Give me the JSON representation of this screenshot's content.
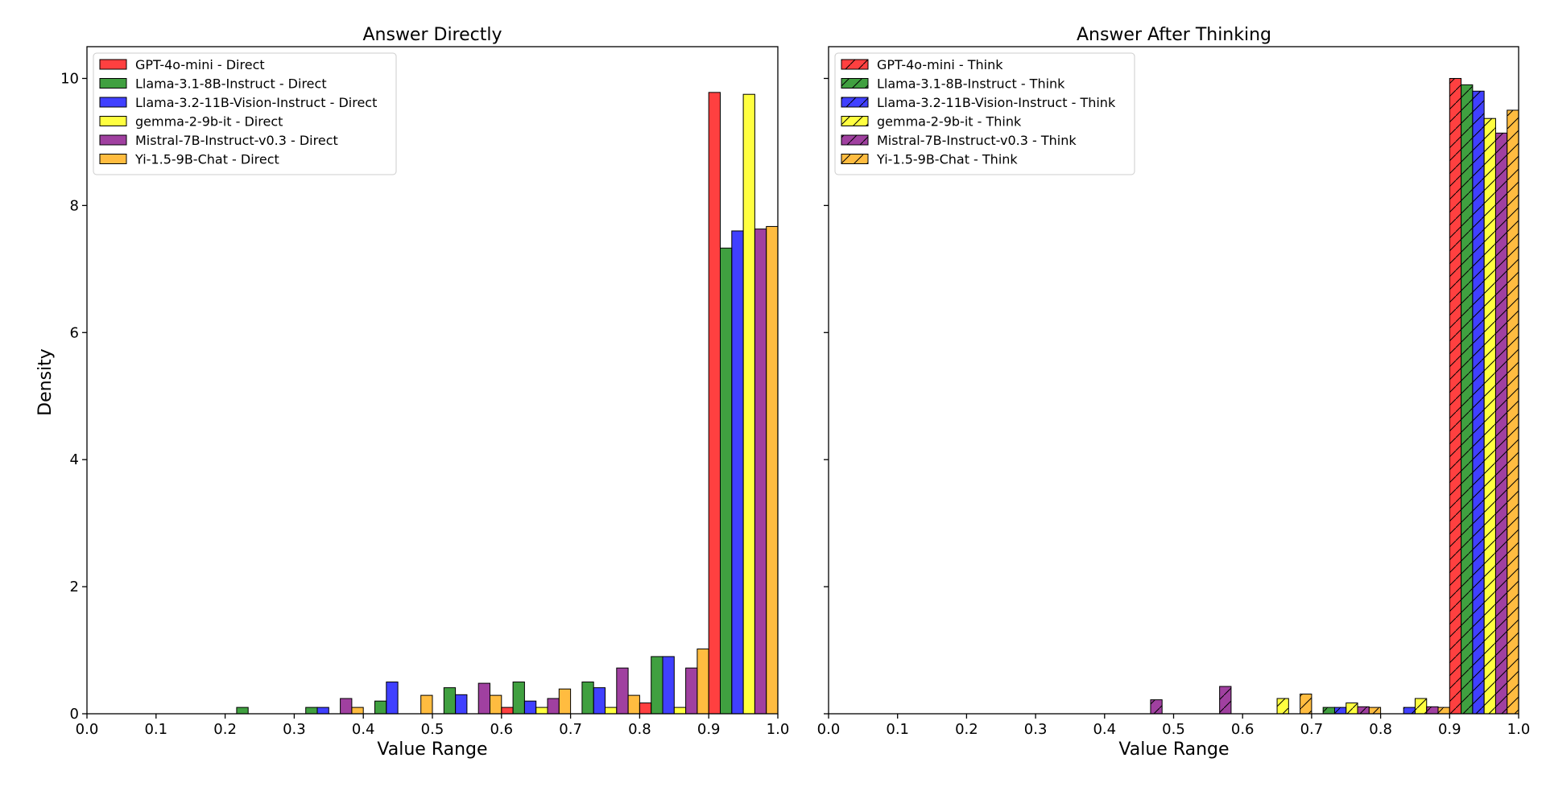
{
  "chart_data": [
    {
      "type": "bar",
      "title": "Answer Directly",
      "xlabel": "Value Range",
      "ylabel": "Density",
      "xlim": [
        0.0,
        1.0
      ],
      "ylim": [
        0,
        10.5
      ],
      "xticks": [
        "0.0",
        "0.1",
        "0.2",
        "0.3",
        "0.4",
        "0.5",
        "0.6",
        "0.7",
        "0.8",
        "0.9",
        "1.0"
      ],
      "yticks": [
        "0",
        "2",
        "4",
        "6",
        "8",
        "10"
      ],
      "legend_position": "top-left",
      "hatched": false,
      "bin_edges": [
        0.2,
        0.3,
        0.4,
        0.5,
        0.6,
        0.7,
        0.8,
        0.9,
        1.0
      ],
      "series": [
        {
          "name": "GPT-4o-mini - Direct",
          "color": "#ff0000",
          "values": [
            0,
            0,
            0,
            0,
            0.1,
            0,
            0.17,
            9.78
          ]
        },
        {
          "name": "Llama-3.1-8B-Instruct - Direct",
          "color": "#008000",
          "values": [
            0.1,
            0.1,
            0.2,
            0.41,
            0.5,
            0.5,
            0.9,
            7.33
          ]
        },
        {
          "name": "Llama-3.2-11B-Vision-Instruct - Direct",
          "color": "#0000ff",
          "values": [
            0,
            0.1,
            0.5,
            0.3,
            0.2,
            0.41,
            0.9,
            7.6
          ]
        },
        {
          "name": "gemma-2-9b-it - Direct",
          "color": "#ffff00",
          "values": [
            0,
            0,
            0,
            0,
            0.1,
            0.1,
            0.1,
            9.75
          ]
        },
        {
          "name": "Mistral-7B-Instruct-v0.3 - Direct",
          "color": "#800080",
          "values": [
            0,
            0.24,
            0,
            0.48,
            0.24,
            0.72,
            0.72,
            7.63
          ]
        },
        {
          "name": "Yi-1.5-9B-Chat - Direct",
          "color": "#ffa500",
          "values": [
            0,
            0.1,
            0.29,
            0.29,
            0.39,
            0.29,
            1.02,
            7.67
          ]
        }
      ]
    },
    {
      "type": "bar",
      "title": "Answer After Thinking",
      "xlabel": "Value Range",
      "ylabel": "",
      "xlim": [
        0.0,
        1.0
      ],
      "ylim": [
        0,
        10.5
      ],
      "xticks": [
        "0.0",
        "0.1",
        "0.2",
        "0.3",
        "0.4",
        "0.5",
        "0.6",
        "0.7",
        "0.8",
        "0.9",
        "1.0"
      ],
      "yticks": [
        "0",
        "2",
        "4",
        "6",
        "8",
        "10"
      ],
      "legend_position": "top-left",
      "hatched": true,
      "bin_edges": [
        0.4,
        0.5,
        0.6,
        0.7,
        0.8,
        0.9,
        1.0
      ],
      "series": [
        {
          "name": "GPT-4o-mini - Think",
          "color": "#ff0000",
          "values": [
            0,
            0,
            0,
            0,
            0,
            10.0
          ]
        },
        {
          "name": "Llama-3.1-8B-Instruct - Think",
          "color": "#008000",
          "values": [
            0,
            0,
            0,
            0.1,
            0,
            9.9
          ]
        },
        {
          "name": "Llama-3.2-11B-Vision-Instruct - Think",
          "color": "#0000ff",
          "values": [
            0,
            0,
            0,
            0.1,
            0.1,
            9.8
          ]
        },
        {
          "name": "gemma-2-9b-it - Think",
          "color": "#ffff00",
          "values": [
            0,
            0,
            0.24,
            0.17,
            0.24,
            9.37
          ]
        },
        {
          "name": "Mistral-7B-Instruct-v0.3 - Think",
          "color": "#800080",
          "values": [
            0.22,
            0.43,
            0,
            0.11,
            0.11,
            9.14
          ]
        },
        {
          "name": "Yi-1.5-9B-Chat - Think",
          "color": "#ffa500",
          "values": [
            0,
            0,
            0.31,
            0.1,
            0.1,
            9.5
          ]
        }
      ]
    }
  ]
}
